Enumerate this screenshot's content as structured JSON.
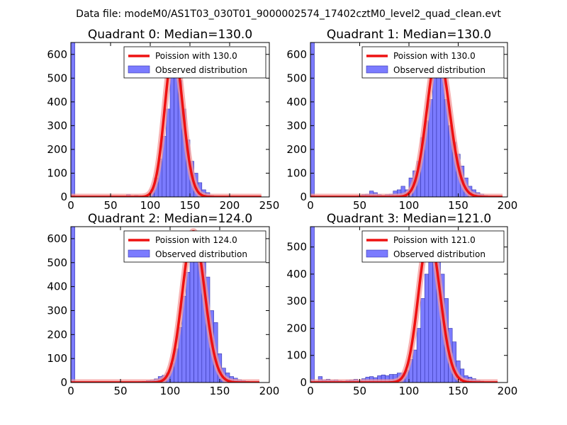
{
  "suptitle": "Data file: modeM0/AS1T03_030T01_9000002574_17402cztM0_level2_quad_clean.evt",
  "colors": {
    "bar_fill": "#7b7bff",
    "bar_edge": "#3333aa",
    "fit_line": "#ee1111",
    "fit_glow": "#f49a9a",
    "axis": "#000000"
  },
  "chart_data": [
    {
      "type": "bar",
      "title": "Quadrant 0: Median=130.0",
      "xlim": [
        0,
        250
      ],
      "ylim": [
        0,
        650
      ],
      "xticks": [
        0,
        50,
        100,
        150,
        200,
        250
      ],
      "yticks": [
        0,
        100,
        200,
        300,
        400,
        500,
        600
      ],
      "bin_width": 5,
      "bins": [
        [
          0,
          650
        ],
        [
          70,
          10
        ],
        [
          80,
          6
        ],
        [
          90,
          4
        ],
        [
          100,
          30
        ],
        [
          105,
          80
        ],
        [
          110,
          160
        ],
        [
          115,
          255
        ],
        [
          120,
          370
        ],
        [
          125,
          510
        ],
        [
          130,
          600
        ],
        [
          135,
          490
        ],
        [
          140,
          370
        ],
        [
          145,
          240
        ],
        [
          150,
          150
        ],
        [
          155,
          100
        ],
        [
          160,
          60
        ],
        [
          165,
          30
        ],
        [
          170,
          18
        ],
        [
          175,
          6
        ]
      ],
      "fit": {
        "label": "Poission with 130.0",
        "mean": 130.0,
        "xrange": [
          0,
          240
        ],
        "peak": 620
      },
      "legend": {
        "line": "Poission with 130.0",
        "bars": "Observed distribution"
      }
    },
    {
      "type": "bar",
      "title": "Quadrant 1: Median=130.0",
      "xlim": [
        0,
        200
      ],
      "ylim": [
        0,
        650
      ],
      "xticks": [
        0,
        50,
        100,
        150,
        200
      ],
      "yticks": [
        0,
        100,
        200,
        300,
        400,
        500,
        600
      ],
      "bin_width": 4,
      "bins": [
        [
          0,
          650
        ],
        [
          48,
          5
        ],
        [
          52,
          10
        ],
        [
          56,
          12
        ],
        [
          60,
          25
        ],
        [
          64,
          18
        ],
        [
          68,
          10
        ],
        [
          72,
          6
        ],
        [
          76,
          10
        ],
        [
          80,
          12
        ],
        [
          84,
          25
        ],
        [
          88,
          30
        ],
        [
          92,
          45
        ],
        [
          96,
          30
        ],
        [
          100,
          80
        ],
        [
          104,
          110
        ],
        [
          108,
          150
        ],
        [
          112,
          250
        ],
        [
          116,
          320
        ],
        [
          120,
          410
        ],
        [
          124,
          530
        ],
        [
          128,
          580
        ],
        [
          132,
          510
        ],
        [
          136,
          410
        ],
        [
          140,
          300
        ],
        [
          144,
          230
        ],
        [
          148,
          180
        ],
        [
          152,
          130
        ],
        [
          156,
          80
        ],
        [
          160,
          45
        ],
        [
          164,
          30
        ],
        [
          168,
          18
        ],
        [
          172,
          12
        ],
        [
          176,
          6
        ],
        [
          180,
          4
        ]
      ],
      "fit": {
        "label": "Poission with 130.0",
        "mean": 130.0,
        "xrange": [
          0,
          195
        ],
        "peak": 610
      },
      "legend": {
        "line": "Poission with 130.0",
        "bars": "Observed distribution"
      }
    },
    {
      "type": "bar",
      "title": "Quadrant 2: Median=124.0",
      "xlim": [
        0,
        200
      ],
      "ylim": [
        0,
        650
      ],
      "xticks": [
        0,
        50,
        100,
        150,
        200
      ],
      "yticks": [
        0,
        100,
        200,
        300,
        400,
        500,
        600
      ],
      "bin_width": 4,
      "bins": [
        [
          0,
          650
        ],
        [
          68,
          4
        ],
        [
          72,
          5
        ],
        [
          76,
          8
        ],
        [
          80,
          10
        ],
        [
          84,
          15
        ],
        [
          88,
          25
        ],
        [
          92,
          30
        ],
        [
          96,
          40
        ],
        [
          100,
          80
        ],
        [
          104,
          140
        ],
        [
          108,
          230
        ],
        [
          112,
          360
        ],
        [
          116,
          460
        ],
        [
          120,
          540
        ],
        [
          124,
          610
        ],
        [
          128,
          620
        ],
        [
          132,
          520
        ],
        [
          136,
          440
        ],
        [
          140,
          300
        ],
        [
          144,
          250
        ],
        [
          148,
          120
        ],
        [
          152,
          60
        ],
        [
          156,
          40
        ],
        [
          160,
          25
        ],
        [
          164,
          18
        ],
        [
          168,
          12
        ],
        [
          172,
          8
        ],
        [
          176,
          5
        ],
        [
          180,
          3
        ]
      ],
      "fit": {
        "label": "Poission with 124.0",
        "mean": 124.0,
        "xrange": [
          0,
          190
        ],
        "peak": 630
      },
      "legend": {
        "line": "Poission with 124.0",
        "bars": "Observed distribution"
      }
    },
    {
      "type": "bar",
      "title": "Quadrant 3: Median=121.0",
      "xlim": [
        0,
        200
      ],
      "ylim": [
        0,
        575
      ],
      "xticks": [
        0,
        50,
        100,
        150,
        200
      ],
      "yticks": [
        0,
        100,
        200,
        300,
        400,
        500
      ],
      "bin_width": 4,
      "bins": [
        [
          0,
          575
        ],
        [
          4,
          5
        ],
        [
          8,
          22
        ],
        [
          12,
          10
        ],
        [
          16,
          12
        ],
        [
          20,
          8
        ],
        [
          24,
          10
        ],
        [
          28,
          6
        ],
        [
          32,
          5
        ],
        [
          36,
          8
        ],
        [
          40,
          10
        ],
        [
          44,
          12
        ],
        [
          48,
          8
        ],
        [
          52,
          14
        ],
        [
          56,
          20
        ],
        [
          60,
          22
        ],
        [
          64,
          18
        ],
        [
          68,
          25
        ],
        [
          72,
          28
        ],
        [
          76,
          25
        ],
        [
          80,
          30
        ],
        [
          84,
          30
        ],
        [
          88,
          35
        ],
        [
          92,
          35
        ],
        [
          96,
          45
        ],
        [
          100,
          85
        ],
        [
          104,
          120
        ],
        [
          108,
          200
        ],
        [
          112,
          310
        ],
        [
          116,
          400
        ],
        [
          120,
          520
        ],
        [
          124,
          505
        ],
        [
          128,
          450
        ],
        [
          132,
          400
        ],
        [
          136,
          310
        ],
        [
          140,
          200
        ],
        [
          144,
          150
        ],
        [
          148,
          80
        ],
        [
          152,
          50
        ],
        [
          156,
          25
        ],
        [
          160,
          20
        ],
        [
          164,
          14
        ],
        [
          168,
          8
        ],
        [
          172,
          5
        ],
        [
          176,
          3
        ]
      ],
      "fit": {
        "label": "Poission with 121.0",
        "mean": 121.0,
        "xrange": [
          0,
          190
        ],
        "peak": 540
      },
      "legend": {
        "line": "Poission with 121.0",
        "bars": "Observed distribution"
      }
    }
  ]
}
